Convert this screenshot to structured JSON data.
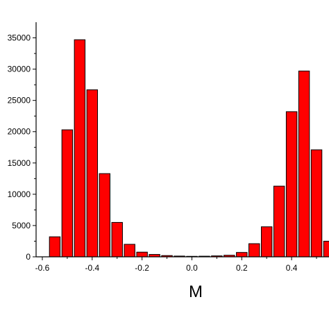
{
  "chart_data": {
    "type": "bar",
    "title": "",
    "xlabel": "M",
    "ylabel": "",
    "xlim": [
      -0.625,
      0.55
    ],
    "ylim": [
      0,
      37500
    ],
    "grid": false,
    "bar_color": "#ff0000",
    "bar_edge_color": "#000000",
    "bar_width": 0.043,
    "x_ticks": [
      {
        "value": -0.6,
        "label": "-0.6"
      },
      {
        "value": -0.4,
        "label": "-0.4"
      },
      {
        "value": -0.2,
        "label": "-0.2"
      },
      {
        "value": 0.0,
        "label": "0.0"
      },
      {
        "value": 0.2,
        "label": "0.2"
      },
      {
        "value": 0.4,
        "label": "0.4"
      }
    ],
    "y_ticks": [
      {
        "value": 0,
        "label": "0"
      },
      {
        "value": 5000,
        "label": "5000"
      },
      {
        "value": 10000,
        "label": "10000"
      },
      {
        "value": 15000,
        "label": "15000"
      },
      {
        "value": 20000,
        "label": "20000"
      },
      {
        "value": 25000,
        "label": "25000"
      },
      {
        "value": 30000,
        "label": "30000"
      },
      {
        "value": 35000,
        "label": "35000"
      }
    ],
    "x": [
      -0.55,
      -0.5,
      -0.45,
      -0.4,
      -0.35,
      -0.3,
      -0.25,
      -0.2,
      -0.15,
      -0.1,
      -0.05,
      0.0,
      0.05,
      0.1,
      0.15,
      0.2,
      0.25,
      0.3,
      0.35,
      0.4,
      0.45,
      0.5,
      0.55
    ],
    "values": [
      3200,
      20300,
      34700,
      26700,
      13300,
      5500,
      2000,
      750,
      380,
      200,
      120,
      80,
      100,
      150,
      250,
      700,
      2100,
      4800,
      11300,
      23200,
      29700,
      17100,
      2500
    ]
  }
}
